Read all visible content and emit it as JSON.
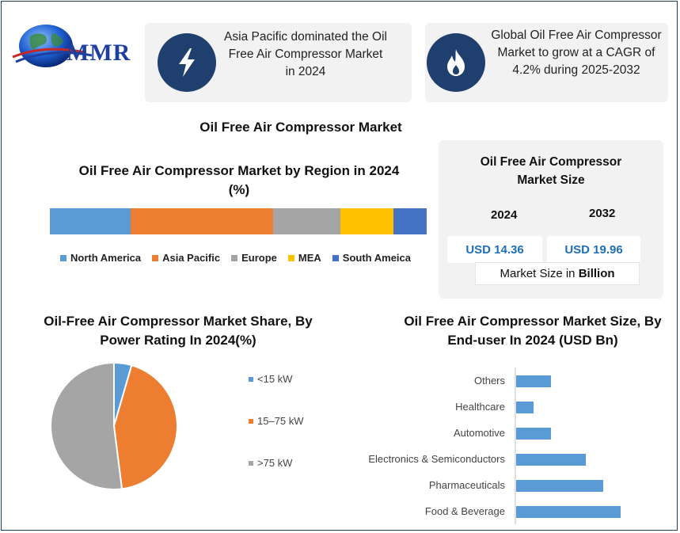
{
  "brand": {
    "logo_text": "MMR"
  },
  "info_cards": [
    {
      "icon": "lightning-bolt-icon",
      "text": "Asia Pacific dominated the Oil Free Air Compressor Market in 2024"
    },
    {
      "icon": "flame-icon",
      "text": "Global Oil Free Air Compressor Market to grow at a CAGR of 4.2% during 2025-2032"
    }
  ],
  "main_title": "Oil Free Air Compressor Market",
  "market_size": {
    "title": "Oil Free Air Compressor Market Size",
    "year1": "2024",
    "year2": "2032",
    "value1": "USD 14.36",
    "value2": "USD 19.96",
    "unit_prefix": "Market Size in ",
    "unit_bold": "Billion"
  },
  "colors": {
    "blue": "#5b9bd5",
    "orange": "#ed7d31",
    "gray": "#a5a5a5",
    "yellow": "#ffc000",
    "darkblue": "#4472c4",
    "navy": "#1f3f6e"
  },
  "chart_data": [
    {
      "type": "bar",
      "stacked": true,
      "orientation": "horizontal",
      "title": "Oil Free Air Compressor Market by Region in 2024 (%)",
      "series": [
        {
          "name": "North America",
          "value": 21.4,
          "color": "#5b9bd5"
        },
        {
          "name": "Asia Pacific",
          "value": 37.8,
          "color": "#ed7d31"
        },
        {
          "name": "Europe",
          "value": 17.9,
          "color": "#a5a5a5"
        },
        {
          "name": "MEA",
          "value": 14.1,
          "color": "#ffc000"
        },
        {
          "name": "South Ameica",
          "value": 8.8,
          "color": "#4472c4"
        }
      ],
      "legend": "bottom"
    },
    {
      "type": "pie",
      "title": "Oil-Free Air Compressor Market Share, By Power Rating In 2024(%)",
      "slices": [
        {
          "label": "<15 kW",
          "value": 4.5,
          "color": "#5b9bd5"
        },
        {
          "label": "15–75 kW",
          "value": 43.5,
          "color": "#ed7d31"
        },
        {
          "label": ">75 kW",
          "value": 52.0,
          "color": "#a5a5a5"
        }
      ],
      "legend": "right"
    },
    {
      "type": "bar",
      "orientation": "horizontal",
      "title": "Oil Free Air Compressor Market Size, By End-user In 2024 (USD Bn)",
      "categories": [
        "Others",
        "Healthcare",
        "Automotive",
        "Electronics & Semiconductors",
        "Pharmaceuticals",
        "Food & Beverage"
      ],
      "values": [
        1.0,
        0.5,
        1.0,
        2.0,
        2.5,
        3.0
      ],
      "color": "#5b9bd5"
    }
  ]
}
